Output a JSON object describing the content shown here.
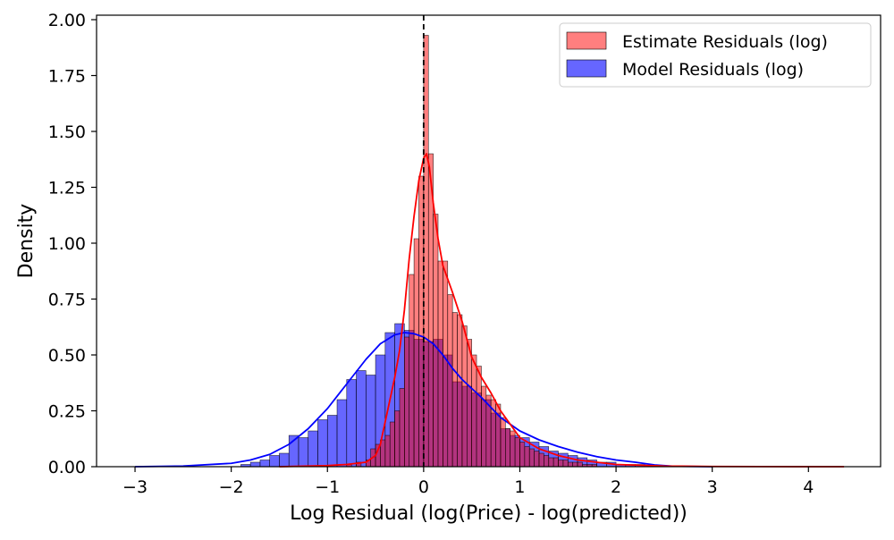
{
  "chart_data": {
    "type": "histogram",
    "title": "",
    "xlabel": "Log Residual (log(Price) - log(predicted))",
    "ylabel": "Density",
    "xlim": [
      -3.4,
      4.75
    ],
    "ylim": [
      0,
      2.02
    ],
    "x_ticks": [
      -3,
      -2,
      -1,
      0,
      1,
      2,
      3,
      4
    ],
    "x_tick_labels": [
      "−3",
      "−2",
      "−1",
      "0",
      "1",
      "2",
      "3",
      "4"
    ],
    "y_ticks": [
      0,
      0.25,
      0.5,
      0.75,
      1.0,
      1.25,
      1.5,
      1.75,
      2.0
    ],
    "y_tick_labels": [
      "0.00",
      "0.25",
      "0.50",
      "0.75",
      "1.00",
      "1.25",
      "1.50",
      "1.75",
      "2.00"
    ],
    "grid": false,
    "legend_position": "top-right",
    "reference_line": {
      "x": 0,
      "style": "dashed",
      "color": "#000000"
    },
    "series": [
      {
        "name": "Model Residuals (log)",
        "color": "#0000ff",
        "fill_opacity": 0.6,
        "bin_width": 0.1,
        "bins": [
          [
            -1.9,
            0.01
          ],
          [
            -1.8,
            0.02
          ],
          [
            -1.7,
            0.03
          ],
          [
            -1.6,
            0.05
          ],
          [
            -1.5,
            0.06
          ],
          [
            -1.4,
            0.14
          ],
          [
            -1.3,
            0.13
          ],
          [
            -1.2,
            0.16
          ],
          [
            -1.1,
            0.21
          ],
          [
            -1.0,
            0.23
          ],
          [
            -0.9,
            0.3
          ],
          [
            -0.8,
            0.39
          ],
          [
            -0.7,
            0.43
          ],
          [
            -0.6,
            0.41
          ],
          [
            -0.5,
            0.5
          ],
          [
            -0.4,
            0.6
          ],
          [
            -0.3,
            0.64
          ],
          [
            -0.2,
            0.61
          ],
          [
            -0.1,
            0.57
          ],
          [
            0.0,
            0.56
          ],
          [
            0.1,
            0.57
          ],
          [
            0.2,
            0.5
          ],
          [
            0.3,
            0.38
          ],
          [
            0.4,
            0.36
          ],
          [
            0.5,
            0.33
          ],
          [
            0.6,
            0.3
          ],
          [
            0.7,
            0.24
          ],
          [
            0.8,
            0.17
          ],
          [
            0.9,
            0.14
          ],
          [
            1.0,
            0.13
          ],
          [
            1.1,
            0.11
          ],
          [
            1.2,
            0.09
          ],
          [
            1.3,
            0.07
          ],
          [
            1.4,
            0.06
          ],
          [
            1.5,
            0.05
          ],
          [
            1.6,
            0.04
          ],
          [
            1.7,
            0.03
          ],
          [
            1.8,
            0.02
          ],
          [
            1.9,
            0.02
          ],
          [
            2.0,
            0.01
          ],
          [
            2.1,
            0.01
          ],
          [
            2.2,
            0.01
          ]
        ],
        "kde": [
          [
            -3.0,
            0.0
          ],
          [
            -2.5,
            0.003
          ],
          [
            -2.0,
            0.015
          ],
          [
            -1.8,
            0.03
          ],
          [
            -1.6,
            0.055
          ],
          [
            -1.4,
            0.1
          ],
          [
            -1.2,
            0.17
          ],
          [
            -1.0,
            0.26
          ],
          [
            -0.8,
            0.37
          ],
          [
            -0.6,
            0.48
          ],
          [
            -0.45,
            0.55
          ],
          [
            -0.3,
            0.59
          ],
          [
            -0.2,
            0.6
          ],
          [
            -0.1,
            0.595
          ],
          [
            0.0,
            0.58
          ],
          [
            0.1,
            0.55
          ],
          [
            0.2,
            0.5
          ],
          [
            0.3,
            0.44
          ],
          [
            0.4,
            0.39
          ],
          [
            0.6,
            0.31
          ],
          [
            0.8,
            0.22
          ],
          [
            1.0,
            0.16
          ],
          [
            1.2,
            0.12
          ],
          [
            1.4,
            0.09
          ],
          [
            1.6,
            0.065
          ],
          [
            1.8,
            0.045
          ],
          [
            2.0,
            0.03
          ],
          [
            2.2,
            0.02
          ],
          [
            2.4,
            0.008
          ],
          [
            2.6,
            0.002
          ],
          [
            3.0,
            0.0
          ]
        ]
      },
      {
        "name": "Estimate Residuals (log)",
        "color": "#ff0000",
        "fill_opacity": 0.5,
        "bin_width": 0.05,
        "bins": [
          [
            -0.8,
            0.01
          ],
          [
            -0.7,
            0.02
          ],
          [
            -0.6,
            0.03
          ],
          [
            -0.55,
            0.08
          ],
          [
            -0.5,
            0.1
          ],
          [
            -0.45,
            0.12
          ],
          [
            -0.4,
            0.14
          ],
          [
            -0.35,
            0.2
          ],
          [
            -0.3,
            0.25
          ],
          [
            -0.25,
            0.35
          ],
          [
            -0.2,
            0.58
          ],
          [
            -0.15,
            0.86
          ],
          [
            -0.1,
            1.02
          ],
          [
            -0.05,
            1.3
          ],
          [
            0.0,
            1.93
          ],
          [
            0.05,
            1.4
          ],
          [
            0.1,
            1.13
          ],
          [
            0.15,
            0.92
          ],
          [
            0.2,
            0.92
          ],
          [
            0.25,
            0.77
          ],
          [
            0.3,
            0.69
          ],
          [
            0.35,
            0.68
          ],
          [
            0.4,
            0.63
          ],
          [
            0.45,
            0.57
          ],
          [
            0.5,
            0.5
          ],
          [
            0.55,
            0.45
          ],
          [
            0.6,
            0.36
          ],
          [
            0.65,
            0.32
          ],
          [
            0.7,
            0.3
          ],
          [
            0.75,
            0.28
          ],
          [
            0.8,
            0.22
          ],
          [
            0.85,
            0.17
          ],
          [
            0.9,
            0.16
          ],
          [
            0.95,
            0.13
          ],
          [
            1.0,
            0.11
          ],
          [
            1.05,
            0.09
          ],
          [
            1.1,
            0.08
          ],
          [
            1.15,
            0.07
          ],
          [
            1.2,
            0.06
          ],
          [
            1.25,
            0.05
          ],
          [
            1.3,
            0.04
          ],
          [
            1.35,
            0.04
          ],
          [
            1.4,
            0.03
          ],
          [
            1.45,
            0.03
          ],
          [
            1.5,
            0.02
          ],
          [
            1.55,
            0.02
          ],
          [
            1.6,
            0.02
          ],
          [
            1.65,
            0.01
          ],
          [
            1.7,
            0.01
          ],
          [
            1.75,
            0.01
          ]
        ],
        "kde": [
          [
            -1.5,
            0.0
          ],
          [
            -1.0,
            0.005
          ],
          [
            -0.8,
            0.01
          ],
          [
            -0.6,
            0.02
          ],
          [
            -0.5,
            0.05
          ],
          [
            -0.45,
            0.1
          ],
          [
            -0.4,
            0.2
          ],
          [
            -0.35,
            0.3
          ],
          [
            -0.3,
            0.4
          ],
          [
            -0.25,
            0.52
          ],
          [
            -0.2,
            0.7
          ],
          [
            -0.15,
            0.93
          ],
          [
            -0.1,
            1.12
          ],
          [
            -0.05,
            1.28
          ],
          [
            0.0,
            1.38
          ],
          [
            0.03,
            1.4
          ],
          [
            0.06,
            1.34
          ],
          [
            0.1,
            1.18
          ],
          [
            0.15,
            1.02
          ],
          [
            0.2,
            0.9
          ],
          [
            0.3,
            0.78
          ],
          [
            0.4,
            0.65
          ],
          [
            0.5,
            0.49
          ],
          [
            0.6,
            0.4
          ],
          [
            0.7,
            0.33
          ],
          [
            0.8,
            0.25
          ],
          [
            0.9,
            0.19
          ],
          [
            1.0,
            0.13
          ],
          [
            1.2,
            0.08
          ],
          [
            1.4,
            0.05
          ],
          [
            1.6,
            0.03
          ],
          [
            1.8,
            0.02
          ],
          [
            2.0,
            0.01
          ],
          [
            2.5,
            0.003
          ],
          [
            3.0,
            0.001
          ],
          [
            3.5,
            0.0005
          ],
          [
            4.37,
            0.0
          ]
        ]
      }
    ],
    "legend_order": [
      "Estimate Residuals (log)",
      "Model Residuals (log)"
    ]
  }
}
